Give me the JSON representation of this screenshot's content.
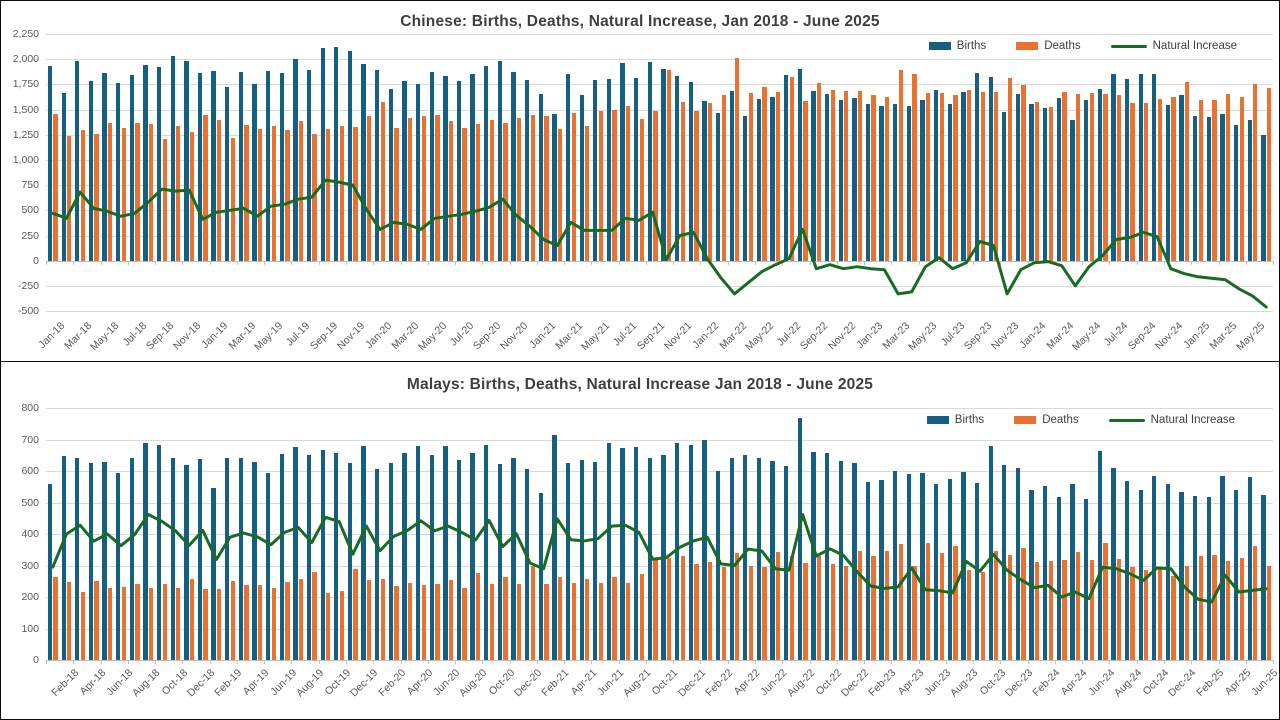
{
  "style": {
    "frame_color": "#0b0b0b",
    "gridline_color": "#d9d9d9",
    "axis_text_color": "#595959",
    "title_color": "#3f3f3f",
    "background": "#ffffff"
  },
  "months": [
    "Jan-18",
    "Feb-18",
    "Mar-18",
    "Apr-18",
    "May-18",
    "Jun-18",
    "Jul-18",
    "Aug-18",
    "Sep-18",
    "Oct-18",
    "Nov-18",
    "Dec-18",
    "Jan-19",
    "Feb-19",
    "Mar-19",
    "Apr-19",
    "May-19",
    "Jun-19",
    "Jul-19",
    "Aug-19",
    "Sep-19",
    "Oct-19",
    "Nov-19",
    "Dec-19",
    "Jan-20",
    "Feb-20",
    "Mar-20",
    "Apr-20",
    "May-20",
    "Jun-20",
    "Jul-20",
    "Aug-20",
    "Sep-20",
    "Oct-20",
    "Nov-20",
    "Dec-20",
    "Jan-21",
    "Feb-21",
    "Mar-21",
    "Apr-21",
    "May-21",
    "Jun-21",
    "Jul-21",
    "Aug-21",
    "Sep-21",
    "Oct-21",
    "Nov-21",
    "Dec-21",
    "Jan-22",
    "Feb-22",
    "Mar-22",
    "Apr-22",
    "May-22",
    "Jun-22",
    "Jul-22",
    "Aug-22",
    "Sep-22",
    "Oct-22",
    "Nov-22",
    "Dec-22",
    "Jan-23",
    "Feb-23",
    "Mar-23",
    "Apr-23",
    "May-23",
    "Jun-23",
    "Jul-23",
    "Aug-23",
    "Sep-23",
    "Oct-23",
    "Nov-23",
    "Dec-23",
    "Jan-24",
    "Feb-24",
    "Mar-24",
    "Apr-24",
    "May-24",
    "Jun-24",
    "Jul-24",
    "Aug-24",
    "Sep-24",
    "Oct-24",
    "Nov-24",
    "Dec-24",
    "Jan-25",
    "Feb-25",
    "Mar-25",
    "Apr-25",
    "May-25",
    "Jun-25"
  ],
  "charts": [
    {
      "title": "Chinese: Births, Deaths, Natural Increase, Jan 2018 - June 2025",
      "chart_data": {
        "type": "bar+line",
        "x_is": "months (Jan 2018 - June 2025, monthly)",
        "xticks": [
          "Jan-18",
          "Mar-18",
          "May-18",
          "Jul-18",
          "Sep-18",
          "Nov-18",
          "Jan-19",
          "Mar-19",
          "May-19",
          "Jul-19",
          "Sep-19",
          "Nov-19",
          "Jan-20",
          "Mar-20",
          "May-20",
          "Jul-20",
          "Sep-20",
          "Nov-20",
          "Jan-21",
          "Mar-21",
          "May-21",
          "Jul-21",
          "Sep-21",
          "Nov-21",
          "Jan-22",
          "Mar-22",
          "May-22",
          "Jul-22",
          "Sep-22",
          "Nov-22",
          "Jan-23",
          "Mar-23",
          "May-23",
          "Jul-23",
          "Sep-23",
          "Nov-23",
          "Jan-24",
          "Mar-24",
          "May-24",
          "Jul-24",
          "Sep-24",
          "Nov-24",
          "Jan-25",
          "Mar-25",
          "May-25"
        ],
        "ylim": [
          -500,
          2250
        ],
        "ytick_step": 250,
        "grid": true,
        "legend_position": "top-right",
        "series": [
          {
            "name": "Births",
            "kind": "bar",
            "color": "#156082",
            "values": [
              1930,
              1660,
              1980,
              1780,
              1860,
              1760,
              1840,
              1940,
              1920,
              2030,
              1980,
              1860,
              1880,
              1720,
              1870,
              1750,
              1880,
              1860,
              2000,
              1890,
              2110,
              2120,
              2080,
              1950,
              1890,
              1700,
              1780,
              1750,
              1870,
              1830,
              1780,
              1850,
              1930,
              1980,
              1870,
              1790,
              1650,
              1460,
              1850,
              1640,
              1790,
              1800,
              1960,
              1810,
              1970,
              1900,
              1830,
              1770,
              1590,
              1470,
              1680,
              1440,
              1610,
              1630,
              1840,
              1900,
              1680,
              1650,
              1600,
              1620,
              1560,
              1540,
              1560,
              1540,
              1600,
              1690,
              1560,
              1670,
              1860,
              1820,
              1480,
              1650,
              1560,
              1520,
              1620,
              1400,
              1600,
              1700,
              1850,
              1800,
              1850,
              1850,
              1550,
              1640,
              1440,
              1425,
              1460,
              1350,
              1400,
              1250
            ]
          },
          {
            "name": "Deaths",
            "kind": "bar",
            "color": "#E97132",
            "values": [
              1460,
              1240,
              1300,
              1260,
              1370,
              1320,
              1370,
              1360,
              1210,
              1340,
              1280,
              1450,
              1400,
              1220,
              1350,
              1310,
              1340,
              1300,
              1390,
              1260,
              1310,
              1340,
              1330,
              1440,
              1580,
              1320,
              1420,
              1440,
              1450,
              1390,
              1320,
              1360,
              1400,
              1370,
              1420,
              1450,
              1440,
              1310,
              1470,
              1340,
              1490,
              1500,
              1540,
              1410,
              1490,
              1890,
              1580,
              1490,
              1570,
              1640,
              2010,
              1660,
              1720,
              1670,
              1820,
              1590,
              1760,
              1690,
              1680,
              1680,
              1640,
              1630,
              1890,
              1850,
              1660,
              1660,
              1640,
              1690,
              1670,
              1670,
              1810,
              1740,
              1580,
              1530,
              1670,
              1650,
              1660,
              1650,
              1640,
              1570,
              1570,
              1610,
              1630,
              1770,
              1600,
              1600,
              1650,
              1630,
              1750,
              1710
            ]
          },
          {
            "name": "Natural Increase",
            "kind": "line",
            "color": "#196B24",
            "values": [
              470,
              420,
              680,
              520,
              490,
              440,
              470,
              580,
              710,
              690,
              700,
              410,
              480,
              500,
              520,
              440,
              540,
              560,
              610,
              630,
              800,
              780,
              750,
              510,
              310,
              380,
              360,
              310,
              420,
              440,
              460,
              490,
              530,
              610,
              450,
              340,
              210,
              150,
              380,
              300,
              300,
              300,
              420,
              400,
              480,
              10,
              250,
              280,
              20,
              -170,
              -330,
              -220,
              -110,
              -40,
              20,
              310,
              -80,
              -40,
              -80,
              -60,
              -80,
              -90,
              -330,
              -310,
              -60,
              30,
              -80,
              -20,
              190,
              150,
              -330,
              -90,
              -20,
              -10,
              -50,
              -250,
              -60,
              50,
              210,
              230,
              280,
              240,
              -80,
              -130,
              -160,
              -175,
              -190,
              -280,
              -350,
              -460
            ]
          }
        ]
      }
    },
    {
      "title": "Malays: Births, Deaths, Natural Increase Jan 2018 - June 2025",
      "chart_data": {
        "type": "bar+line",
        "x_is": "months (Jan 2018 - June 2025, monthly)",
        "xticks": [
          "Feb-18",
          "Apr-18",
          "Jun-18",
          "Aug-18",
          "Oct-18",
          "Dec-18",
          "Feb-19",
          "Apr-19",
          "Jun-19",
          "Aug-19",
          "Oct-19",
          "Dec-19",
          "Feb-20",
          "Apr-20",
          "Jun-20",
          "Aug-20",
          "Oct-20",
          "Dec-20",
          "Feb-21",
          "Apr-21",
          "Jun-21",
          "Aug-21",
          "Oct-21",
          "Dec-21",
          "Feb-22",
          "Apr-22",
          "Jun-22",
          "Aug-22",
          "Oct-22",
          "Dec-22",
          "Feb-23",
          "Apr-23",
          "Jun-23",
          "Aug-23",
          "Oct-23",
          "Dec-23",
          "Feb-24",
          "Apr-24",
          "Jun-24",
          "Aug-24",
          "Oct-24",
          "Dec-24",
          "Feb-25",
          "Apr-25",
          "Jun-25"
        ],
        "ylim": [
          0,
          800
        ],
        "ytick_step": 100,
        "grid": true,
        "legend_position": "top-right",
        "series": [
          {
            "name": "Births",
            "kind": "bar",
            "color": "#156082",
            "values": [
              560,
              648,
              643,
              627,
              630,
              595,
              640,
              690,
              682,
              640,
              620,
              637,
              545,
              640,
              640,
              630,
              595,
              653,
              677,
              652,
              667,
              658,
              626,
              680,
              605,
              627,
              656,
              680,
              650,
              680,
              635,
              656,
              683,
              623,
              643,
              608,
              530,
              713,
              627,
              636,
              630,
              690,
              673,
              677,
              640,
              650,
              688,
              683,
              700,
              600,
              640,
              652,
              641,
              632,
              615,
              770,
              660,
              658,
              632,
              625,
              565,
              572,
              600,
              592,
              595,
              560,
              575,
              598,
              562,
              680,
              620,
              610,
              540,
              552,
              518,
              558,
              512,
              665,
              610,
              568,
              540,
              585,
              558,
              532,
              522,
              518,
              584,
              540,
              582,
              525
            ]
          },
          {
            "name": "Deaths",
            "kind": "bar",
            "color": "#E97132",
            "values": [
              265,
              248,
              215,
              250,
              230,
              232,
              242,
              228,
              242,
              230,
              256,
              226,
              226,
              250,
              237,
              239,
              229,
              248,
              256,
              279,
              214,
              218,
              290,
              255,
              258,
              235,
              245,
              238,
              240,
              255,
              230,
              275,
              240,
              263,
              242,
              300,
              240,
              265,
              245,
              258,
              245,
              265,
              245,
              272,
              320,
              325,
              330,
              305,
              310,
              295,
              340,
              300,
              295,
              342,
              330,
              308,
              330,
              305,
              300,
              345,
              330,
              345,
              368,
              300,
              372,
              340,
              362,
              285,
              280,
              345,
              335,
              355,
              310,
              315,
              318,
              342,
              317,
              370,
              320,
              294,
              287,
              293,
              268,
              300,
              329,
              334,
              315,
              324,
              361,
              299
            ]
          },
          {
            "name": "Natural Increase",
            "kind": "line",
            "color": "#196B24",
            "values": [
              295,
              400,
              428,
              377,
              400,
              363,
              398,
              462,
              440,
              410,
              364,
              411,
              319,
              390,
              403,
              391,
              366,
              405,
              421,
              373,
              453,
              440,
              336,
              425,
              347,
              392,
              411,
              442,
              410,
              425,
              405,
              381,
              443,
              360,
              401,
              308,
              290,
              448,
              382,
              378,
              385,
              425,
              428,
              405,
              320,
              325,
              358,
              378,
              390,
              305,
              300,
              352,
              346,
              290,
              285,
              462,
              330,
              353,
              332,
              280,
              235,
              227,
              232,
              292,
              223,
              220,
              213,
              313,
              282,
              335,
              285,
              255,
              230,
              237,
              200,
              216,
              195,
              295,
              290,
              274,
              253,
              292,
              290,
              232,
              193,
              184,
              269,
              216,
              221,
              226
            ]
          }
        ]
      }
    }
  ]
}
